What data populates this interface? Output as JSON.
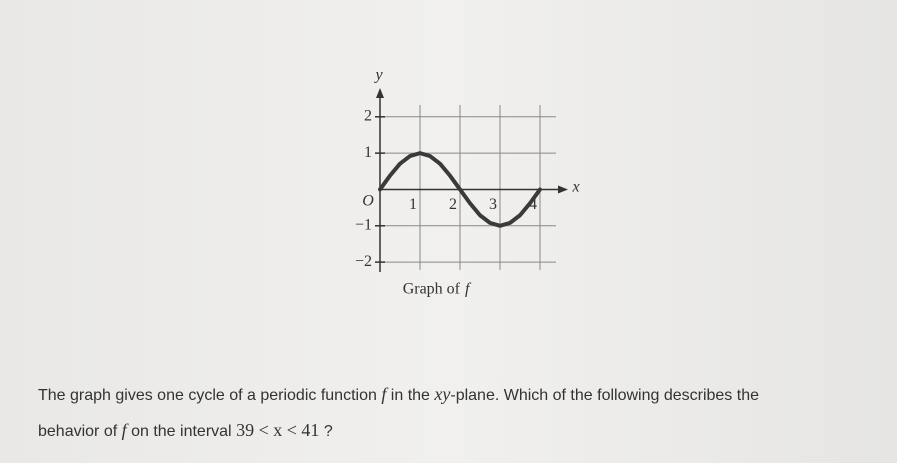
{
  "chart_data": {
    "type": "line",
    "x": [
      0,
      0.25,
      0.5,
      0.75,
      1,
      1.25,
      1.5,
      1.75,
      2,
      2.25,
      2.5,
      2.75,
      3,
      3.25,
      3.5,
      3.75,
      4
    ],
    "values": [
      0,
      0.38,
      0.71,
      0.92,
      1,
      0.92,
      0.71,
      0.38,
      0,
      -0.38,
      -0.71,
      -0.92,
      -1,
      -0.92,
      -0.71,
      -0.38,
      0
    ],
    "color": "#3a3a3a",
    "xlim": [
      0,
      4.7
    ],
    "ylim": [
      -2.3,
      2.6
    ],
    "xticks": [
      1,
      2,
      3,
      4
    ],
    "yticks": [
      {
        "value": -2,
        "label": "−2"
      },
      {
        "value": -1,
        "label": "−1"
      },
      1,
      2
    ],
    "grid": true,
    "xlabel": "x",
    "ylabel": "y",
    "origin_label": "O",
    "caption": [
      "Graph of",
      "f"
    ]
  },
  "question": [
    "The graph gives one cycle of a periodic function",
    "f",
    "in the",
    "xy",
    "-plane. Which of the following describes the",
    "behavior of",
    "f",
    "on the interval",
    "39 < x < 41",
    "?"
  ]
}
